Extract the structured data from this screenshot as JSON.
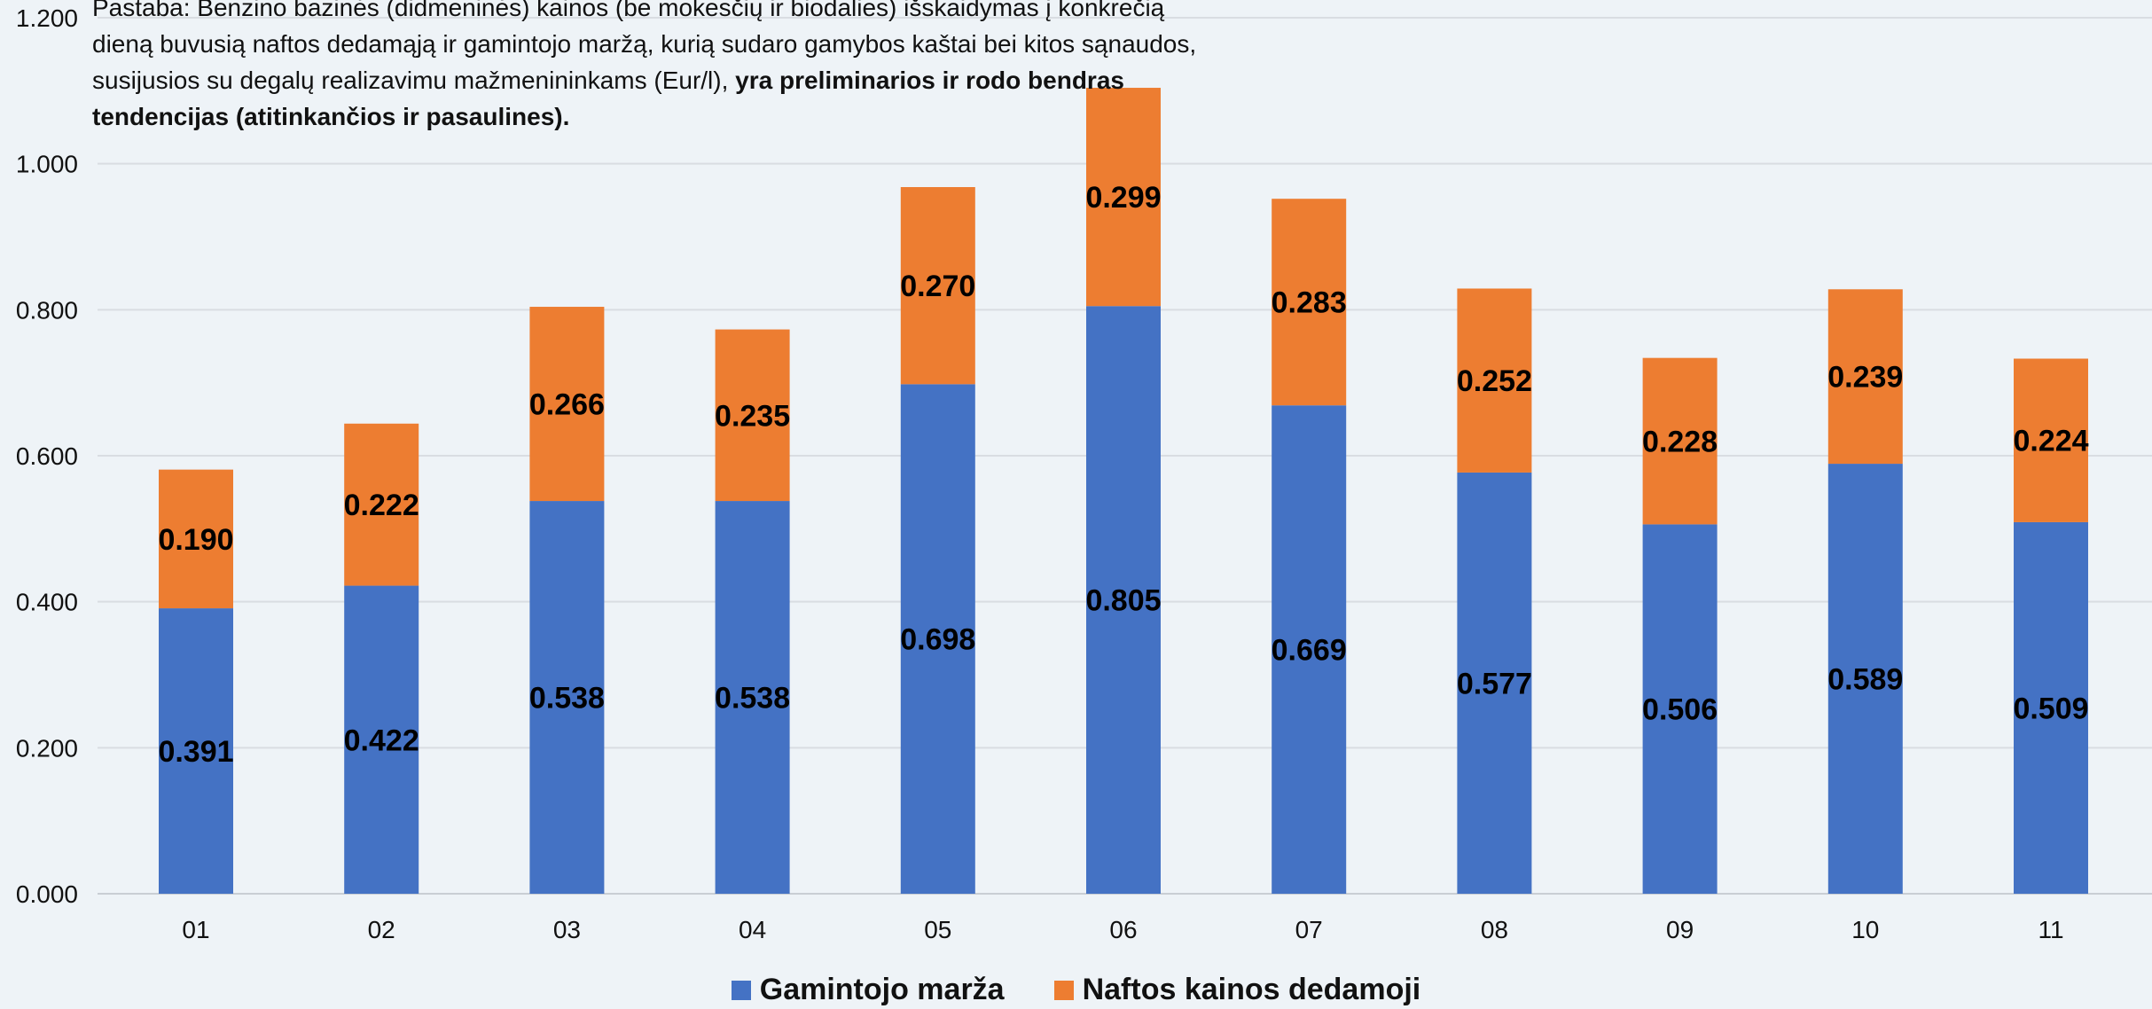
{
  "note": {
    "normal": "Pastaba: Benzino bazinės (didmeninės) kainos (be mokesčių ir biodalies) išskaidymas į konkrečią dieną buvusią naftos dedamąją ir gamintojo maržą, kurią sudaro gamybos kaštai bei kitos sąnaudos, susijusios su degalų realizavimu mažmenininkams (Eur/l),",
    "bold": "yra preliminarios ir rodo bendras tendencijas (atitinkančios ir pasaulines)."
  },
  "colors": {
    "margin": "#4472c4",
    "oil": "#ed7d31",
    "grid": "#d9dde2",
    "background": "#eef3f7"
  },
  "chart_data": {
    "type": "bar",
    "stacked": true,
    "categories": [
      "01",
      "02",
      "03",
      "04",
      "05",
      "06",
      "07",
      "08",
      "09",
      "10",
      "11"
    ],
    "series": [
      {
        "name": "Gamintojo marža",
        "values": [
          0.391,
          0.422,
          0.538,
          0.538,
          0.698,
          0.805,
          0.669,
          0.577,
          0.506,
          0.589,
          0.509
        ]
      },
      {
        "name": "Naftos kainos dedamoji",
        "values": [
          0.19,
          0.222,
          0.266,
          0.235,
          0.27,
          0.299,
          0.283,
          0.252,
          0.228,
          0.239,
          0.224
        ]
      }
    ],
    "ylim": [
      0,
      1.2
    ],
    "yticks": [
      "0.000",
      "0.200",
      "0.400",
      "0.600",
      "0.800",
      "1.000",
      "1.200"
    ],
    "grid": true,
    "legend_position": "bottom"
  }
}
